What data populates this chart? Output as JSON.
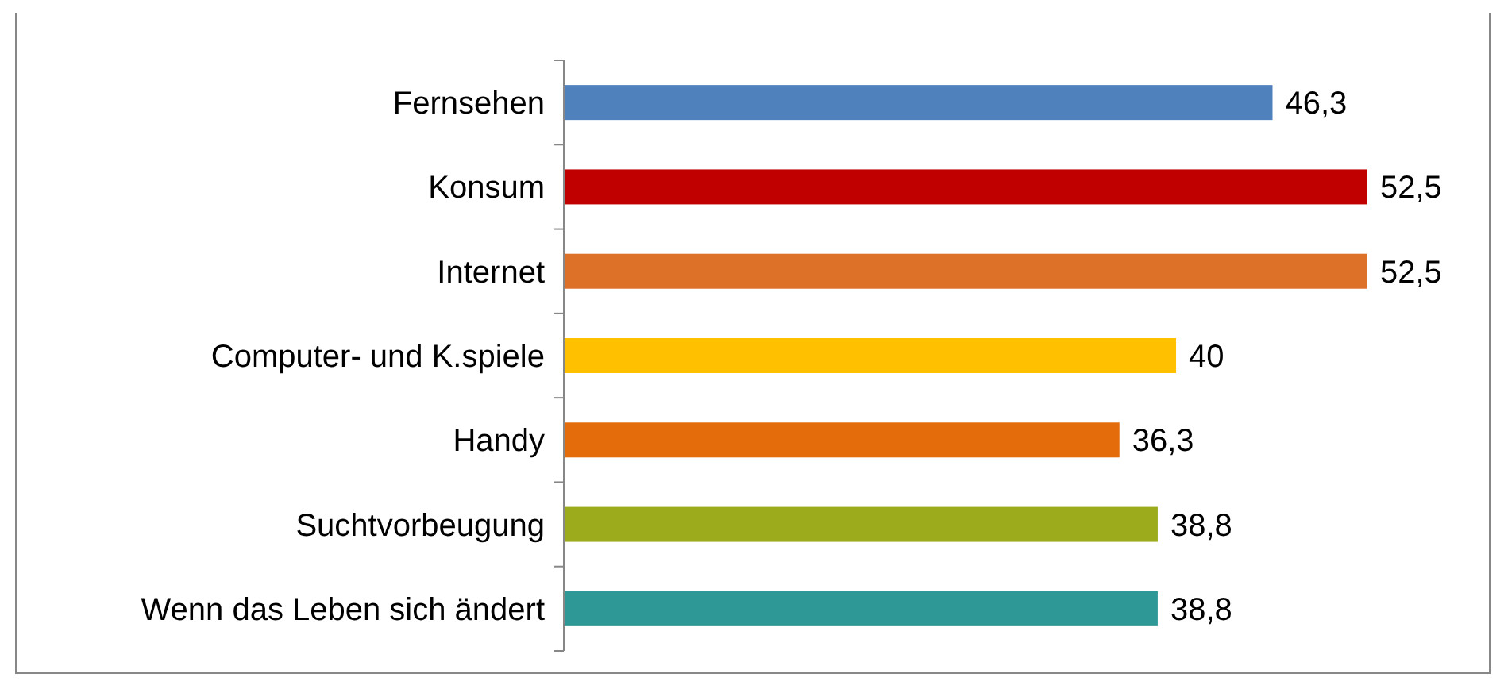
{
  "chart_data": {
    "type": "bar",
    "orientation": "horizontal",
    "data_labels": true,
    "categories": [
      "Fernsehen",
      "Konsum",
      "Internet",
      "Computer- und K.spiele",
      "Handy",
      "Suchtvorbeugung",
      "Wenn das Leben sich ändert"
    ],
    "values": [
      46.3,
      52.5,
      52.5,
      40,
      36.3,
      38.8,
      38.8
    ],
    "value_labels": [
      "46,3",
      "52,5",
      "52,5",
      "40",
      "36,3",
      "38,8",
      "38,8"
    ],
    "colors": [
      "#4f81bd",
      "#c00000",
      "#dd7128",
      "#ffc000",
      "#e46c0a",
      "#9bab1b",
      "#2e9896"
    ]
  }
}
